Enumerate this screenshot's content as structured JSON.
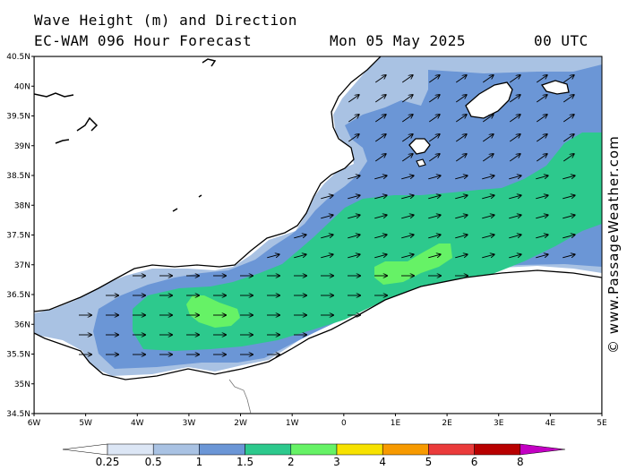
{
  "header": {
    "line1": "Wave Height (m) and Direction",
    "line2": "EC-WAM 096 Hour Forecast",
    "date": "Mon 05 May 2025",
    "time": "00 UTC"
  },
  "map": {
    "lon_range": [
      -6,
      5
    ],
    "lat_range": [
      34.5,
      40.5
    ],
    "lat_ticks": [
      "40.5N",
      "40N",
      "39.5N",
      "39N",
      "38.5N",
      "38N",
      "37.5N",
      "37N",
      "36.5N",
      "36N",
      "35.5N",
      "35N",
      "34.5N"
    ],
    "lon_ticks": [
      "6W",
      "5W",
      "4W",
      "3W",
      "2W",
      "1W",
      "0",
      "1E",
      "2E",
      "3E",
      "4E",
      "5E"
    ],
    "colors": {
      "sea_lt": "#d6e1f2",
      "band_025": "#a9c2e3",
      "band_05": "#6b96d6",
      "band_1": "#2dc98d",
      "band_15": "#66f266",
      "land": "#ffffff",
      "coast": "#000000"
    },
    "wave_direction": "east-north-east"
  },
  "legend": {
    "labels": [
      "0.25",
      "0.5",
      "1",
      "1.5",
      "2",
      "3",
      "4",
      "5",
      "6",
      "8"
    ],
    "colors": [
      "#ffffff",
      "#dce6f5",
      "#a9c2e3",
      "#6b96d6",
      "#2dc98d",
      "#66f266",
      "#f7e200",
      "#f79a00",
      "#ea3b3b",
      "#b80000",
      "#c300c3"
    ]
  },
  "watermark": "© www.PassageWeather.com"
}
